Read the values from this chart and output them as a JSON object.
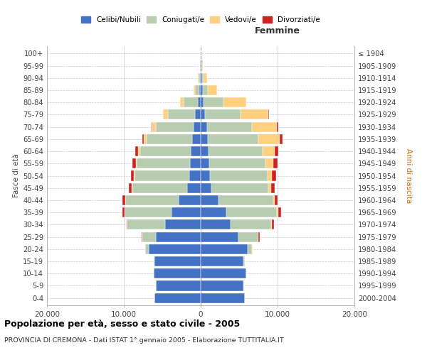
{
  "age_groups": [
    "0-4",
    "5-9",
    "10-14",
    "15-19",
    "20-24",
    "25-29",
    "30-34",
    "35-39",
    "40-44",
    "45-49",
    "50-54",
    "55-59",
    "60-64",
    "65-69",
    "70-74",
    "75-79",
    "80-84",
    "85-89",
    "90-94",
    "95-99",
    "100+"
  ],
  "birth_years": [
    "2000-2004",
    "1995-1999",
    "1990-1994",
    "1985-1989",
    "1980-1984",
    "1975-1979",
    "1970-1974",
    "1965-1969",
    "1960-1964",
    "1955-1959",
    "1950-1954",
    "1945-1949",
    "1940-1944",
    "1935-1939",
    "1930-1934",
    "1925-1929",
    "1920-1924",
    "1915-1919",
    "1910-1914",
    "1905-1909",
    "≤ 1904"
  ],
  "males": {
    "celibe": [
      6000,
      5800,
      6100,
      6000,
      6800,
      5800,
      4600,
      3800,
      2900,
      1800,
      1500,
      1400,
      1300,
      1100,
      900,
      700,
      350,
      200,
      120,
      60,
      20
    ],
    "coniugato": [
      0,
      5,
      20,
      100,
      400,
      1800,
      4900,
      6100,
      6900,
      7100,
      7100,
      6900,
      6600,
      5900,
      4900,
      3600,
      1900,
      500,
      150,
      40,
      10
    ],
    "vedovo": [
      0,
      0,
      0,
      2,
      5,
      10,
      20,
      30,
      50,
      80,
      100,
      150,
      250,
      400,
      500,
      600,
      400,
      200,
      80,
      20,
      5
    ],
    "divorziato": [
      0,
      0,
      0,
      10,
      30,
      80,
      150,
      260,
      310,
      360,
      420,
      420,
      360,
      210,
      80,
      50,
      20,
      10,
      5,
      0,
      0
    ]
  },
  "females": {
    "nubile": [
      5700,
      5600,
      5900,
      5600,
      6100,
      4900,
      3900,
      3300,
      2300,
      1400,
      1200,
      1100,
      1000,
      900,
      800,
      600,
      400,
      250,
      150,
      80,
      20
    ],
    "coniugata": [
      0,
      5,
      30,
      150,
      600,
      2600,
      5300,
      6600,
      7100,
      7400,
      7500,
      7300,
      7100,
      6600,
      5900,
      4600,
      2600,
      700,
      200,
      50,
      10
    ],
    "vedova": [
      0,
      0,
      0,
      5,
      20,
      40,
      80,
      150,
      250,
      400,
      600,
      1000,
      1500,
      2800,
      3200,
      3600,
      2900,
      1200,
      500,
      150,
      30
    ],
    "divorziata": [
      0,
      0,
      0,
      10,
      40,
      100,
      260,
      420,
      380,
      420,
      520,
      620,
      520,
      310,
      160,
      80,
      30,
      10,
      5,
      0,
      0
    ]
  },
  "colors": {
    "celibe": "#4472C4",
    "coniugato": "#B8CCB0",
    "vedovo": "#FFD080",
    "divorziato": "#CC2222"
  },
  "legend_labels": [
    "Celibi/Nubili",
    "Coniugati/e",
    "Vedovi/e",
    "Divorziati/e"
  ],
  "title": "Popolazione per età, sesso e stato civile - 2005",
  "subtitle": "PROVINCIA DI CREMONA - Dati ISTAT 1° gennaio 2005 - Elaborazione TUTTITALIA.IT",
  "xlabel_right": "Femmine",
  "ylabel_left": "Fasce di età",
  "ylabel_right": "Anni di nascita",
  "xlim": 20000,
  "bg_color": "#FFFFFF",
  "grid_color": "#CCCCCC",
  "bar_edge_color": "#FFFFFF"
}
